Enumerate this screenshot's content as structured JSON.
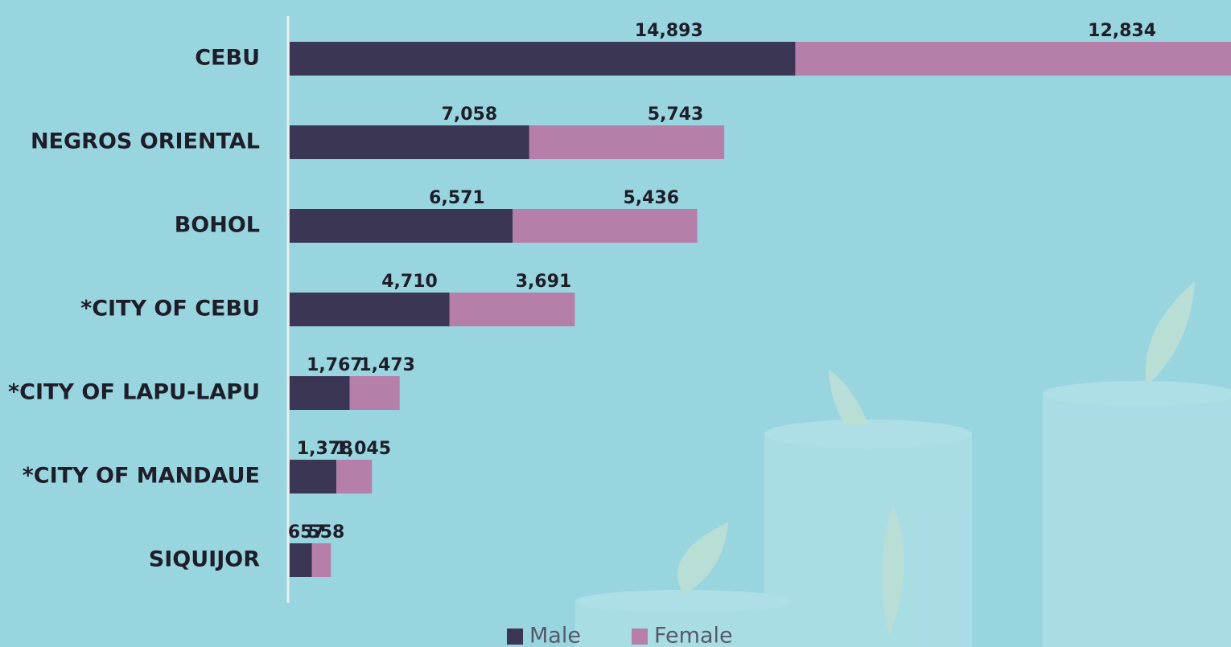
{
  "chart_data": {
    "type": "bar",
    "orientation": "horizontal",
    "stacked": true,
    "categories": [
      "CEBU",
      "NEGROS ORIENTAL",
      "BOHOL",
      "*CITY OF CEBU",
      "*CITY OF LAPU-LAPU",
      "*CITY OF MANDAUE",
      "SIQUIJOR"
    ],
    "series": [
      {
        "name": "Male",
        "color": "#3b3654",
        "values": [
          14893,
          7058,
          6571,
          4710,
          1767,
          1378,
          657
        ],
        "value_labels": [
          "14,893",
          "7,058",
          "6,571",
          "4,710",
          "1,767",
          "1,378",
          "657"
        ]
      },
      {
        "name": "Female",
        "color": "#b57faa",
        "values": [
          12834,
          5743,
          5436,
          3691,
          1473,
          1045,
          558
        ],
        "value_labels": [
          "12,834",
          "5,743",
          "5,436",
          "3,691",
          "1,473",
          "1,045",
          "558"
        ]
      }
    ],
    "legend": "bottom"
  }
}
